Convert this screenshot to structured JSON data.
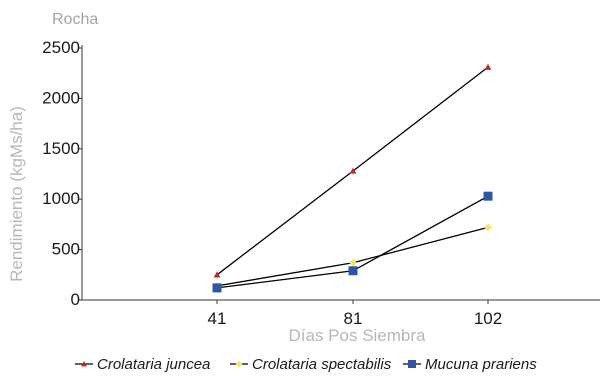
{
  "chart_data": {
    "type": "line",
    "title": "Rocha",
    "xlabel": "Días Pos Siembra",
    "ylabel": "Rendimiento (kgMs/ha)",
    "categories": [
      "41",
      "81",
      "102"
    ],
    "yticks": [
      "0",
      "500",
      "1000",
      "1500",
      "2000",
      "2500"
    ],
    "ylim": [
      0,
      2500
    ],
    "grid": false,
    "legend_position": "bottom",
    "series": [
      {
        "name": "Crolataria juncea",
        "values": [
          250,
          1280,
          2310
        ],
        "color": "#c0272d",
        "marker": "triangle",
        "line_color": "#000000"
      },
      {
        "name": "Crolataria spectabilis",
        "values": [
          140,
          370,
          720
        ],
        "color": "#f5e463",
        "marker": "diamond",
        "line_color": "#000000"
      },
      {
        "name": "Mucuna prariens",
        "values": [
          120,
          290,
          1030
        ],
        "color": "#2f56a3",
        "marker": "square",
        "line_color": "#000000"
      }
    ]
  }
}
